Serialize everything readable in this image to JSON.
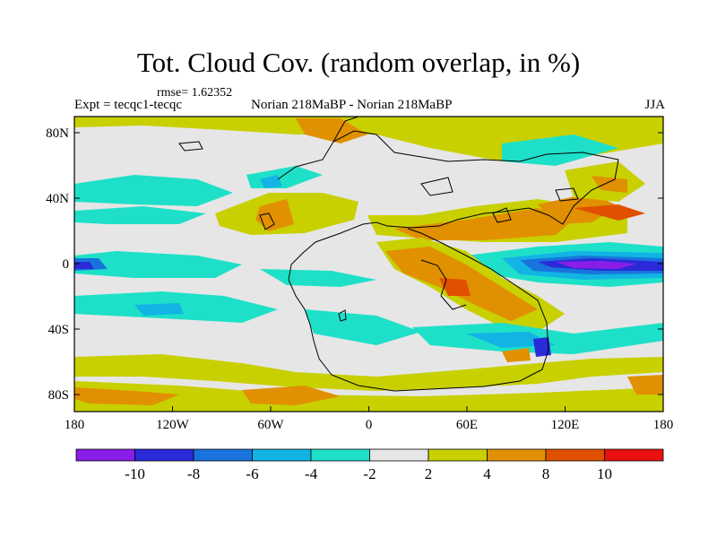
{
  "title": "Tot. Cloud Cov. (random overlap, in %)",
  "rmse_label": "rmse= 1.62352",
  "expt_label": "Expt = tecqc1-tecqc",
  "subtitle": "Norian 218MaBP - Norian 218MaBP",
  "season": "JJA",
  "y_ticks": [
    "80N",
    "40N",
    "0",
    "40S",
    "80S"
  ],
  "x_ticks": [
    "180",
    "120W",
    "60W",
    "0",
    "60E",
    "120E",
    "180"
  ],
  "colorbar": {
    "labels": [
      "-10",
      "-8",
      "-6",
      "-4",
      "-2",
      "2",
      "4",
      "8",
      "10"
    ],
    "colors": [
      "#8a1ee8",
      "#2a2ad8",
      "#1874dc",
      "#12b4e4",
      "#1ee0c8",
      "#e6e6e6",
      "#c8d000",
      "#e09000",
      "#e05000",
      "#e81010"
    ]
  }
}
